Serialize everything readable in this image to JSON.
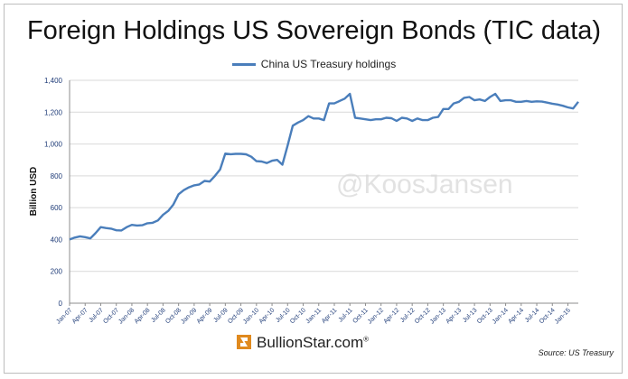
{
  "title": "Foreign Holdings US Sovereign Bonds (TIC data)",
  "legend_label": "China US Treasury holdings",
  "watermark": "@KoosJansen",
  "footer": {
    "logo_text": "BullionStar.com",
    "logo_mark": "®"
  },
  "source": "Source: US Treasury",
  "colors": {
    "series": "#4a7ebb",
    "axis_text": "#1f3c78",
    "grid": "#d9d9d9"
  },
  "chart_data": {
    "type": "line",
    "title": "Foreign Holdings US Sovereign Bonds (TIC data)",
    "ylabel": "Billion USD",
    "xlabel": "",
    "ylim": [
      0,
      1400
    ],
    "yticks": [
      0,
      200,
      400,
      600,
      800,
      1000,
      1200,
      1400
    ],
    "ytick_labels": [
      "0",
      "200",
      "400",
      "600",
      "800",
      "1,000",
      "1,200",
      "1,400"
    ],
    "xtick_labels": [
      "Jan-07",
      "Apr-07",
      "Jul-07",
      "Oct-07",
      "Jan-08",
      "Apr-08",
      "Jul-08",
      "Oct-08",
      "Jan-09",
      "Apr-09",
      "Jul-09",
      "Oct-09",
      "Jan-10",
      "Apr-10",
      "Jul-10",
      "Oct-10",
      "Jan-11",
      "Apr-11",
      "Jul-11",
      "Oct-11",
      "Jan-12",
      "Apr-12",
      "Jul-12",
      "Oct-12",
      "Jan-13",
      "Apr-13",
      "Jul-13",
      "Oct-13",
      "Jan-14",
      "Apr-14",
      "Jul-14",
      "Oct-14",
      "Jan-15"
    ],
    "grid": "horizontal",
    "legend_position": "top",
    "series": [
      {
        "name": "China US Treasury holdings",
        "x": [
          "Jan-07",
          "Feb-07",
          "Mar-07",
          "Apr-07",
          "May-07",
          "Jun-07",
          "Jul-07",
          "Aug-07",
          "Sep-07",
          "Oct-07",
          "Nov-07",
          "Dec-07",
          "Jan-08",
          "Feb-08",
          "Mar-08",
          "Apr-08",
          "May-08",
          "Jun-08",
          "Jul-08",
          "Aug-08",
          "Sep-08",
          "Oct-08",
          "Nov-08",
          "Dec-08",
          "Jan-09",
          "Feb-09",
          "Mar-09",
          "Apr-09",
          "May-09",
          "Jun-09",
          "Jul-09",
          "Aug-09",
          "Sep-09",
          "Oct-09",
          "Nov-09",
          "Dec-09",
          "Jan-10",
          "Feb-10",
          "Mar-10",
          "Apr-10",
          "May-10",
          "Jun-10",
          "Jul-10",
          "Aug-10",
          "Sep-10",
          "Oct-10",
          "Nov-10",
          "Dec-10",
          "Jan-11",
          "Feb-11",
          "Mar-11",
          "Apr-11",
          "May-11",
          "Jun-11",
          "Jul-11",
          "Aug-11",
          "Sep-11",
          "Oct-11",
          "Nov-11",
          "Dec-11",
          "Jan-12",
          "Feb-12",
          "Mar-12",
          "Apr-12",
          "May-12",
          "Jun-12",
          "Jul-12",
          "Aug-12",
          "Sep-12",
          "Oct-12",
          "Nov-12",
          "Dec-12",
          "Jan-13",
          "Feb-13",
          "Mar-13",
          "Apr-13",
          "May-13",
          "Jun-13",
          "Jul-13",
          "Aug-13",
          "Sep-13",
          "Oct-13",
          "Nov-13",
          "Dec-13",
          "Jan-14",
          "Feb-14",
          "Mar-14",
          "Apr-14",
          "May-14",
          "Jun-14",
          "Jul-14",
          "Aug-14",
          "Sep-14",
          "Oct-14",
          "Nov-14",
          "Dec-14",
          "Jan-15",
          "Feb-15",
          "Mar-15"
        ],
        "values": [
          400,
          412,
          420,
          415,
          407,
          440,
          478,
          472,
          468,
          458,
          457,
          478,
          492,
          488,
          490,
          502,
          505,
          520,
          555,
          580,
          620,
          684,
          710,
          728,
          740,
          746,
          768,
          764,
          800,
          840,
          940,
          936,
          938,
          938,
          935,
          920,
          892,
          890,
          880,
          895,
          900,
          870,
          990,
          1115,
          1135,
          1150,
          1175,
          1160,
          1160,
          1150,
          1255,
          1255,
          1270,
          1285,
          1315,
          1165,
          1160,
          1155,
          1150,
          1155,
          1155,
          1165,
          1162,
          1145,
          1165,
          1160,
          1145,
          1160,
          1150,
          1150,
          1165,
          1170,
          1220,
          1220,
          1255,
          1265,
          1290,
          1295,
          1275,
          1280,
          1270,
          1295,
          1315,
          1270,
          1275,
          1275,
          1265,
          1265,
          1270,
          1265,
          1268,
          1266,
          1260,
          1253,
          1248,
          1240,
          1230,
          1223,
          1265
        ]
      }
    ]
  }
}
